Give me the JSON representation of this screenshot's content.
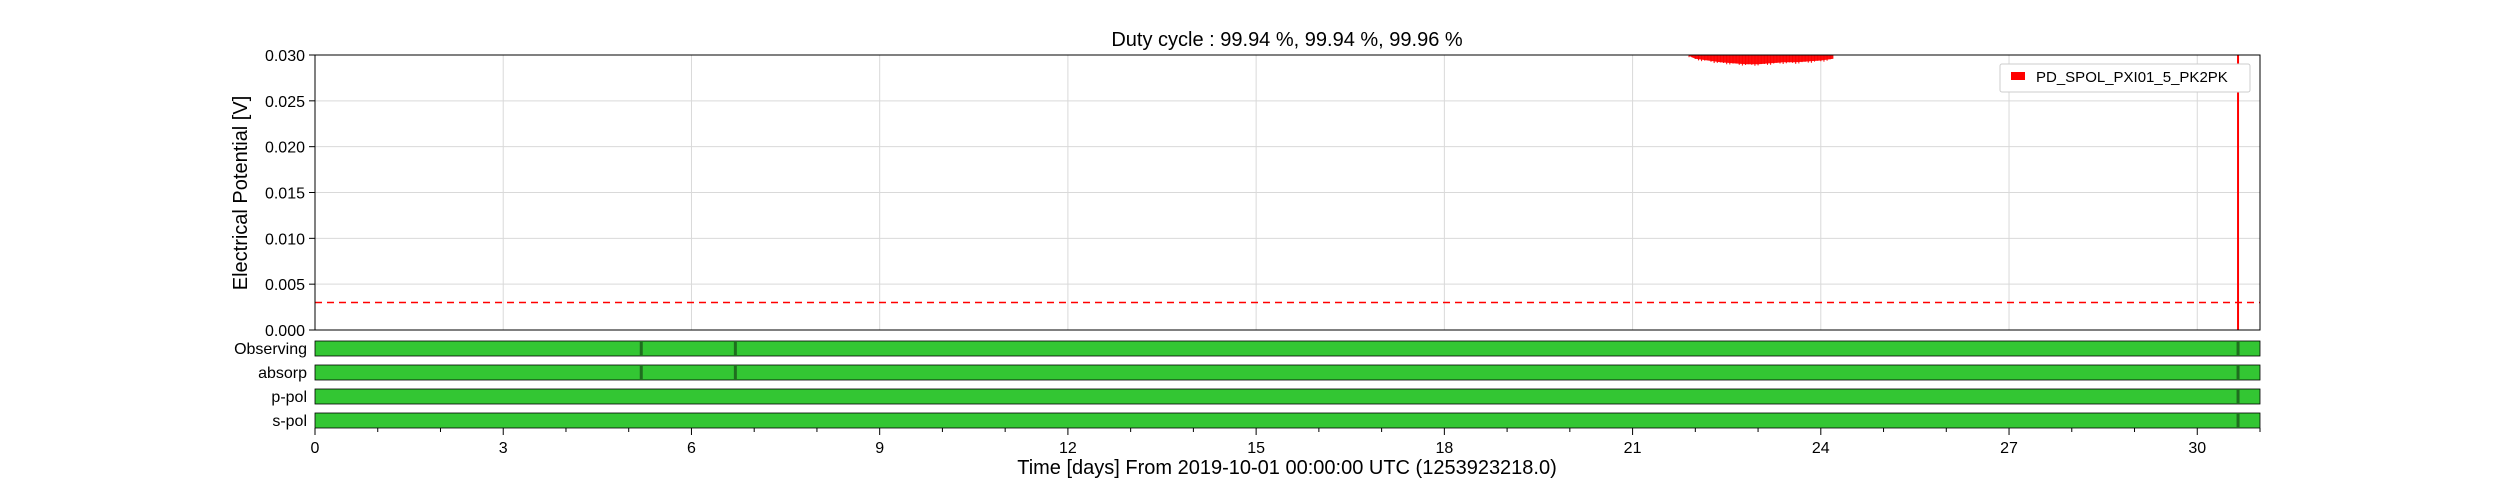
{
  "chart_data": {
    "type": "line",
    "title": "Duty cycle : 99.94 %, 99.94 %, 99.96 %",
    "xlabel": "Time [days] From 2019-10-01 00:00:00 UTC (1253923218.0)",
    "ylabel": "Electrical Potential [V]",
    "xlim": [
      0,
      31
    ],
    "ylim": [
      0,
      0.03
    ],
    "xticks": [
      0,
      3,
      6,
      9,
      12,
      15,
      18,
      21,
      24,
      27,
      30
    ],
    "yticks": [
      0,
      0.005,
      0.01,
      0.015,
      0.02,
      0.025,
      0.03
    ],
    "ytick_labels": [
      "0.000",
      "0.005",
      "0.010",
      "0.015",
      "0.020",
      "0.025",
      "0.030"
    ],
    "threshold": 0.003,
    "grid": true,
    "legend_position": "top-right",
    "series": [
      {
        "name": "PD_SPOL_PXI01_5_PK2PK",
        "color": "#ff0000",
        "x": [
          21.9,
          22.0,
          22.2,
          22.4,
          22.6,
          22.8,
          23.0,
          23.2,
          23.4,
          23.6,
          23.8,
          24.0,
          24.2,
          30.7
        ],
        "y": [
          0.0299,
          0.0296,
          0.0294,
          0.0292,
          0.0291,
          0.029,
          0.029,
          0.0291,
          0.0292,
          0.0292,
          0.0293,
          0.0294,
          0.0296,
          0.0
        ],
        "spike_day": 30.65
      }
    ],
    "state_bars": [
      {
        "label": "Observing",
        "color": "#33c633",
        "gap_color": "#1f6e1f",
        "gaps": [
          5.2,
          6.7,
          30.65
        ]
      },
      {
        "label": "absorp",
        "color": "#33c633",
        "gap_color": "#1f6e1f",
        "gaps": [
          5.2,
          6.7,
          30.65
        ]
      },
      {
        "label": "p-pol",
        "color": "#33c633",
        "gap_color": "#1f6e1f",
        "gaps": [
          30.65
        ]
      },
      {
        "label": "s-pol",
        "color": "#33c633",
        "gap_color": "#1f6e1f",
        "gaps": [
          30.65
        ]
      }
    ]
  }
}
